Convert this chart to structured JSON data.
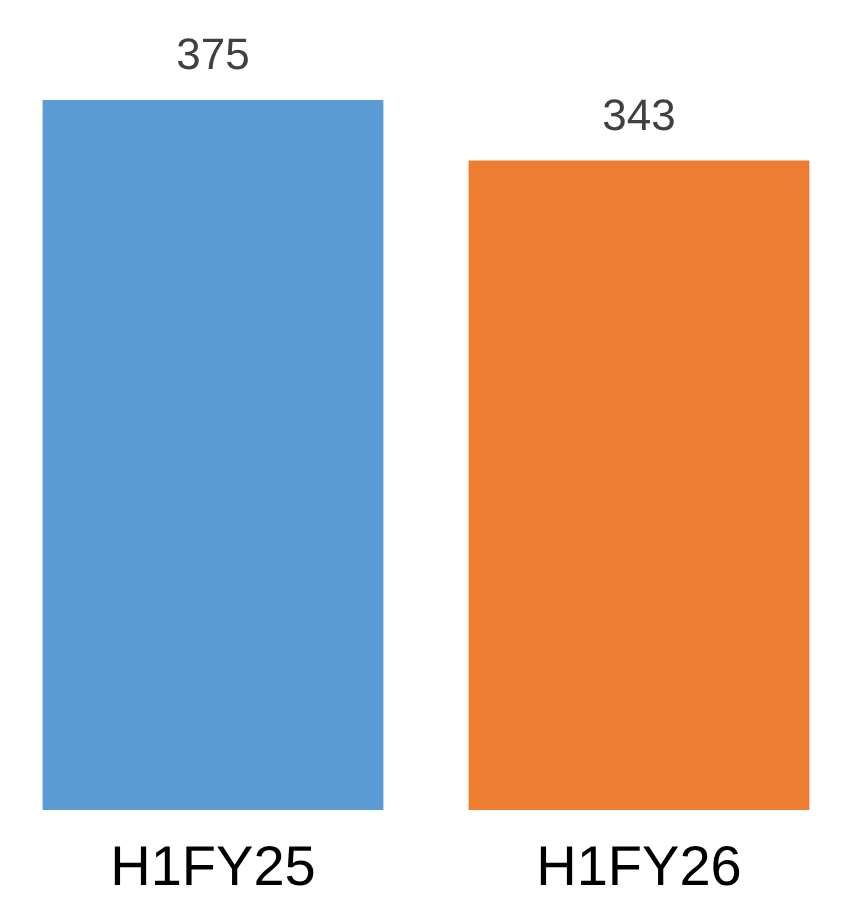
{
  "chart_data": {
    "type": "bar",
    "categories": [
      "H1FY25",
      "H1FY26"
    ],
    "values": [
      375,
      343
    ],
    "colors": [
      "#5b9bd5",
      "#ed7d31"
    ],
    "data_labels": true
  }
}
